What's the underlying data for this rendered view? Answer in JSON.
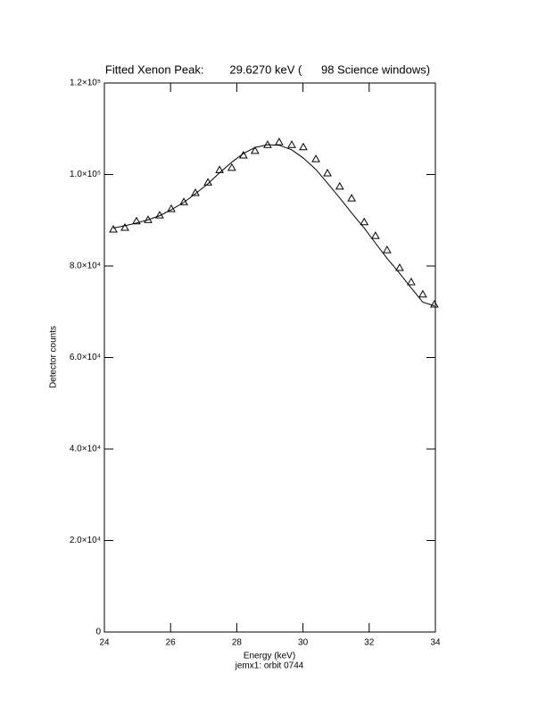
{
  "chart_data": {
    "type": "line",
    "title": "Fitted Xenon Peak:        29.6270 keV (      98 Science windows)",
    "x_label": "Energy (keV)",
    "y_label": "Detector counts",
    "footnote": "jemx1: orbit 0744",
    "xlim": [
      24,
      34
    ],
    "xticks": [
      24,
      26,
      28,
      30,
      32,
      34
    ],
    "ylim": [
      0,
      120000
    ],
    "yticks": [
      {
        "value": 0,
        "label": "0"
      },
      {
        "value": 20000,
        "label": "2.0×10⁴"
      },
      {
        "value": 40000,
        "label": "4.0×10⁴"
      },
      {
        "value": 60000,
        "label": "6.0×10⁴"
      },
      {
        "value": 80000,
        "label": "8.0×10⁴"
      },
      {
        "value": 100000,
        "label": "1.0×10⁵"
      },
      {
        "value": 120000,
        "label": "1.2×10⁵"
      }
    ],
    "color": "#000000",
    "x": [
      24.27,
      24.62,
      24.97,
      25.32,
      25.67,
      26.02,
      26.4,
      26.75,
      27.13,
      27.48,
      27.85,
      28.2,
      28.55,
      28.93,
      29.28,
      29.66,
      30.01,
      30.39,
      30.74,
      31.11,
      31.47,
      31.85,
      32.19,
      32.54,
      32.92,
      33.27,
      33.62,
      33.97
    ],
    "series": [
      {
        "values": [
          88000,
          88400,
          89800,
          90100,
          91100,
          92500,
          94000,
          96000,
          98300,
          101000,
          101500,
          104200,
          105200,
          106500,
          107100,
          106500,
          106000,
          103400,
          100300,
          97400,
          94800,
          89600,
          86600,
          83500,
          79600,
          76500,
          73800,
          71600
        ],
        "marker": "triangle"
      },
      {
        "values": [
          88300,
          88800,
          89400,
          90100,
          91000,
          92300,
          93900,
          95800,
          98000,
          100400,
          102700,
          104600,
          105900,
          106500,
          106400,
          105400,
          103600,
          101100,
          98100,
          94900,
          91600,
          88300,
          85000,
          81700,
          78400,
          75200,
          72100,
          71300
        ],
        "marker": "none"
      }
    ]
  }
}
